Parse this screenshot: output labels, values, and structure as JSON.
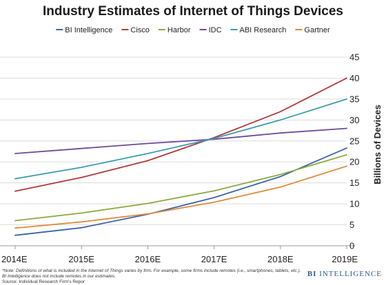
{
  "chart_data": {
    "type": "line",
    "title": "Industry Estimates of Internet of Things Devices",
    "ylabel": "Billions of Devices",
    "xlabel": "",
    "categories": [
      "2014E",
      "2015E",
      "2016E",
      "2017E",
      "2018E",
      "2019E"
    ],
    "ylim": [
      0,
      45
    ],
    "yticks": [
      0,
      5,
      10,
      15,
      20,
      25,
      30,
      35,
      40,
      45
    ],
    "grid": "horizontal",
    "legend_placement": "top",
    "series": [
      {
        "name": "BI Intelligence",
        "color": "#3a63a8",
        "values": [
          2.5,
          4.3,
          7.5,
          11.5,
          16.5,
          23.3
        ]
      },
      {
        "name": "Cisco",
        "color": "#b03a3a",
        "values": [
          13,
          16.3,
          20.3,
          25.8,
          32,
          40
        ]
      },
      {
        "name": "Harbor",
        "color": "#8aaa3c",
        "values": [
          6,
          7.8,
          10.1,
          13.1,
          17,
          21.7
        ]
      },
      {
        "name": "IDC",
        "color": "#6b4a9a",
        "values": [
          22,
          23.2,
          24.4,
          25.4,
          26.9,
          28
        ]
      },
      {
        "name": "ABI Research",
        "color": "#3a9bb0",
        "values": [
          16,
          18.7,
          22,
          25.6,
          30,
          35
        ]
      },
      {
        "name": "Gartner",
        "color": "#e08a3a",
        "values": [
          4.2,
          5.7,
          7.6,
          10.4,
          14,
          19
        ]
      }
    ]
  },
  "footnote": {
    "note": "*Note: Definitions of what is included in the Internet of Things varies by firm. For example, some firms include remotes (i.e., smartphones, tablets, etc.). BI Intelligence does not include remotes in our estimates.",
    "source": "Source: Individual Research Firm's Repor"
  },
  "brand": {
    "bi": "BI",
    "name": "INTELLIGENCE",
    "color": "#2c5b8c"
  }
}
